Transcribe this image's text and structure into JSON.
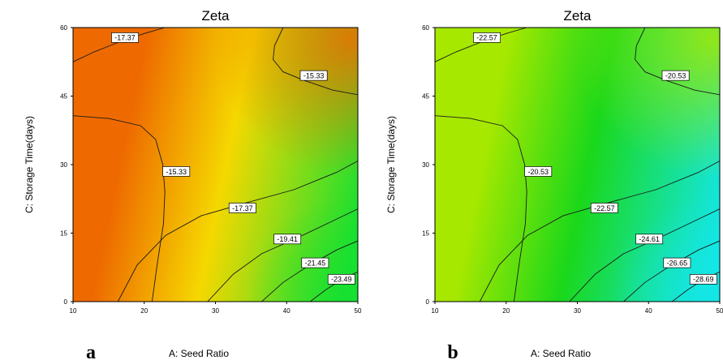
{
  "chart_data": [
    {
      "type": "heatmap",
      "panel_letter": "a",
      "title": "Zeta",
      "xlabel": "A: Seed Ratio",
      "ylabel": "C: Storage Time(days)",
      "x_ticks": [
        "10",
        "20",
        "30",
        "40",
        "50"
      ],
      "y_ticks": [
        "0",
        "15",
        "30",
        "45",
        "60"
      ],
      "xlim": [
        10,
        50
      ],
      "ylim": [
        0,
        60
      ],
      "colormap": "rainbow",
      "colors": {
        "high": "#ee6a00",
        "mid": "#f5d800",
        "low": "#16e030"
      },
      "contours": [
        {
          "label": "-15.33",
          "level": -15.33,
          "label_at": [
            24.5,
            28.5
          ]
        },
        {
          "label": "-15.33",
          "level": -15.33,
          "label_at": [
            43.8,
            49.5
          ]
        },
        {
          "label": "-17.37",
          "level": -17.37,
          "label_at": [
            17.3,
            57.8
          ]
        },
        {
          "label": "-17.37",
          "level": -17.37,
          "label_at": [
            33.8,
            20.5
          ]
        },
        {
          "label": "-19.41",
          "level": -19.41,
          "label_at": [
            40.1,
            13.7
          ]
        },
        {
          "label": "-21.45",
          "level": -21.45,
          "label_at": [
            44.0,
            8.5
          ]
        },
        {
          "label": "-23.49",
          "level": -23.49,
          "label_at": [
            47.7,
            4.9
          ]
        }
      ]
    },
    {
      "type": "heatmap",
      "panel_letter": "b",
      "title": "Zeta",
      "xlabel": "A: Seed Ratio",
      "ylabel": "C: Storage Time(days)",
      "x_ticks": [
        "10",
        "20",
        "30",
        "40",
        "50"
      ],
      "y_ticks": [
        "0",
        "15",
        "30",
        "45",
        "60"
      ],
      "xlim": [
        10,
        50
      ],
      "ylim": [
        0,
        60
      ],
      "colormap": "rainbow",
      "colors": {
        "high": "#a6e800",
        "mid": "#1ad81a",
        "low": "#14e6e6"
      },
      "contours": [
        {
          "label": "-20.53",
          "level": -20.53,
          "label_at": [
            24.5,
            28.5
          ]
        },
        {
          "label": "-20.53",
          "level": -20.53,
          "label_at": [
            43.8,
            49.5
          ]
        },
        {
          "label": "-22.57",
          "level": -22.57,
          "label_at": [
            17.3,
            57.8
          ]
        },
        {
          "label": "-22.57",
          "level": -22.57,
          "label_at": [
            33.8,
            20.5
          ]
        },
        {
          "label": "-24.61",
          "level": -24.61,
          "label_at": [
            40.1,
            13.7
          ]
        },
        {
          "label": "-26.65",
          "level": -26.65,
          "label_at": [
            44.0,
            8.5
          ]
        },
        {
          "label": "-28.69",
          "level": -28.69,
          "label_at": [
            47.7,
            4.9
          ]
        }
      ]
    }
  ]
}
